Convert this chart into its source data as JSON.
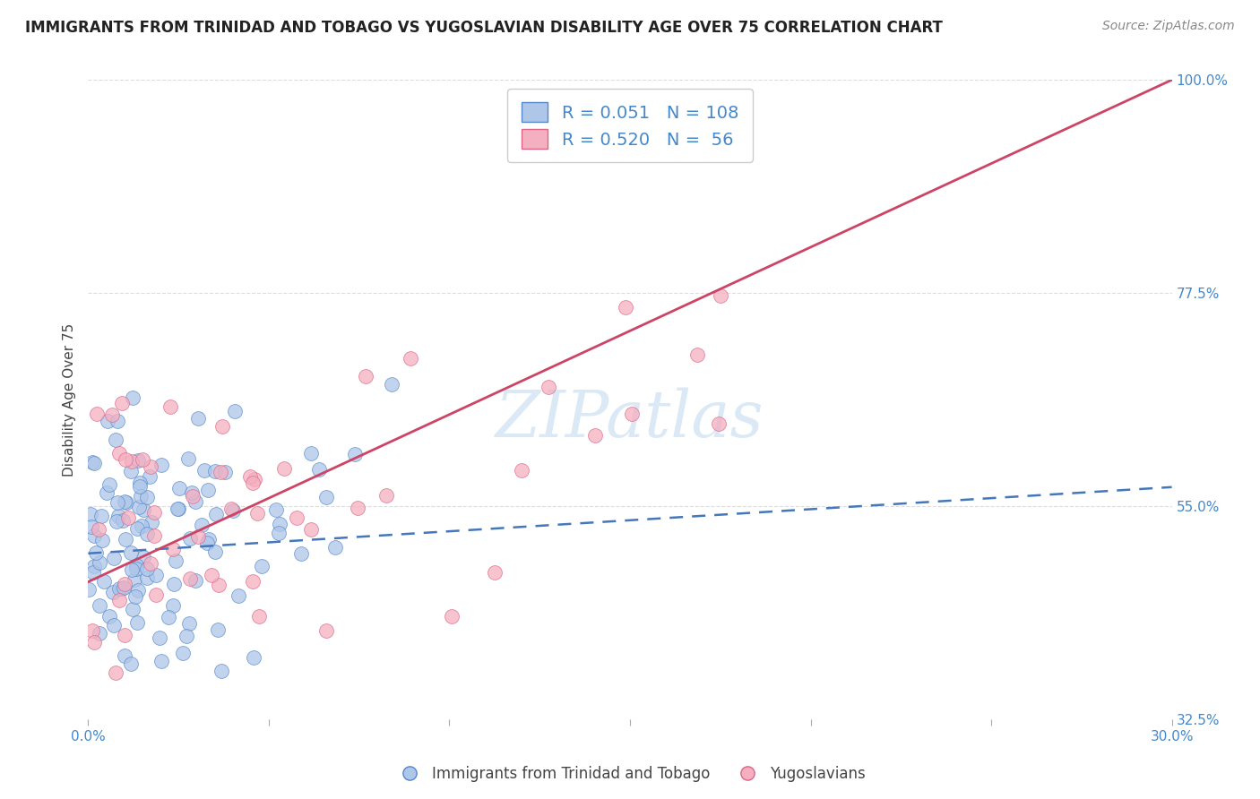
{
  "title": "IMMIGRANTS FROM TRINIDAD AND TOBAGO VS YUGOSLAVIAN DISABILITY AGE OVER 75 CORRELATION CHART",
  "source": "Source: ZipAtlas.com",
  "ylabel": "Disability Age Over 75",
  "xlim": [
    0.0,
    30.0
  ],
  "ylim": [
    32.5,
    100.0
  ],
  "xtick_vals": [
    0.0,
    5.0,
    10.0,
    15.0,
    20.0,
    25.0,
    30.0
  ],
  "xtick_labels": [
    "0.0%",
    "",
    "",
    "",
    "",
    "",
    "30.0%"
  ],
  "ytick_vals": [
    32.5,
    55.0,
    77.5,
    100.0
  ],
  "ytick_labels": [
    "32.5%",
    "55.0%",
    "77.5%",
    "100.0%"
  ],
  "blue_R": 0.051,
  "blue_N": 108,
  "pink_R": 0.52,
  "pink_N": 56,
  "blue_color": "#aec6e8",
  "pink_color": "#f4afc0",
  "blue_edge_color": "#5588cc",
  "pink_edge_color": "#dd6688",
  "blue_line_color": "#4477bb",
  "pink_line_color": "#cc4466",
  "legend_blue_label": "Immigrants from Trinidad and Tobago",
  "legend_pink_label": "Yugoslavians",
  "watermark": "ZIPatlas",
  "watermark_color": "#b8d4ee",
  "background_color": "#ffffff",
  "grid_color": "#dddddd",
  "title_color": "#222222",
  "title_fontsize": 12,
  "axis_label_color": "#444444",
  "tick_label_color": "#4488cc",
  "source_color": "#888888"
}
